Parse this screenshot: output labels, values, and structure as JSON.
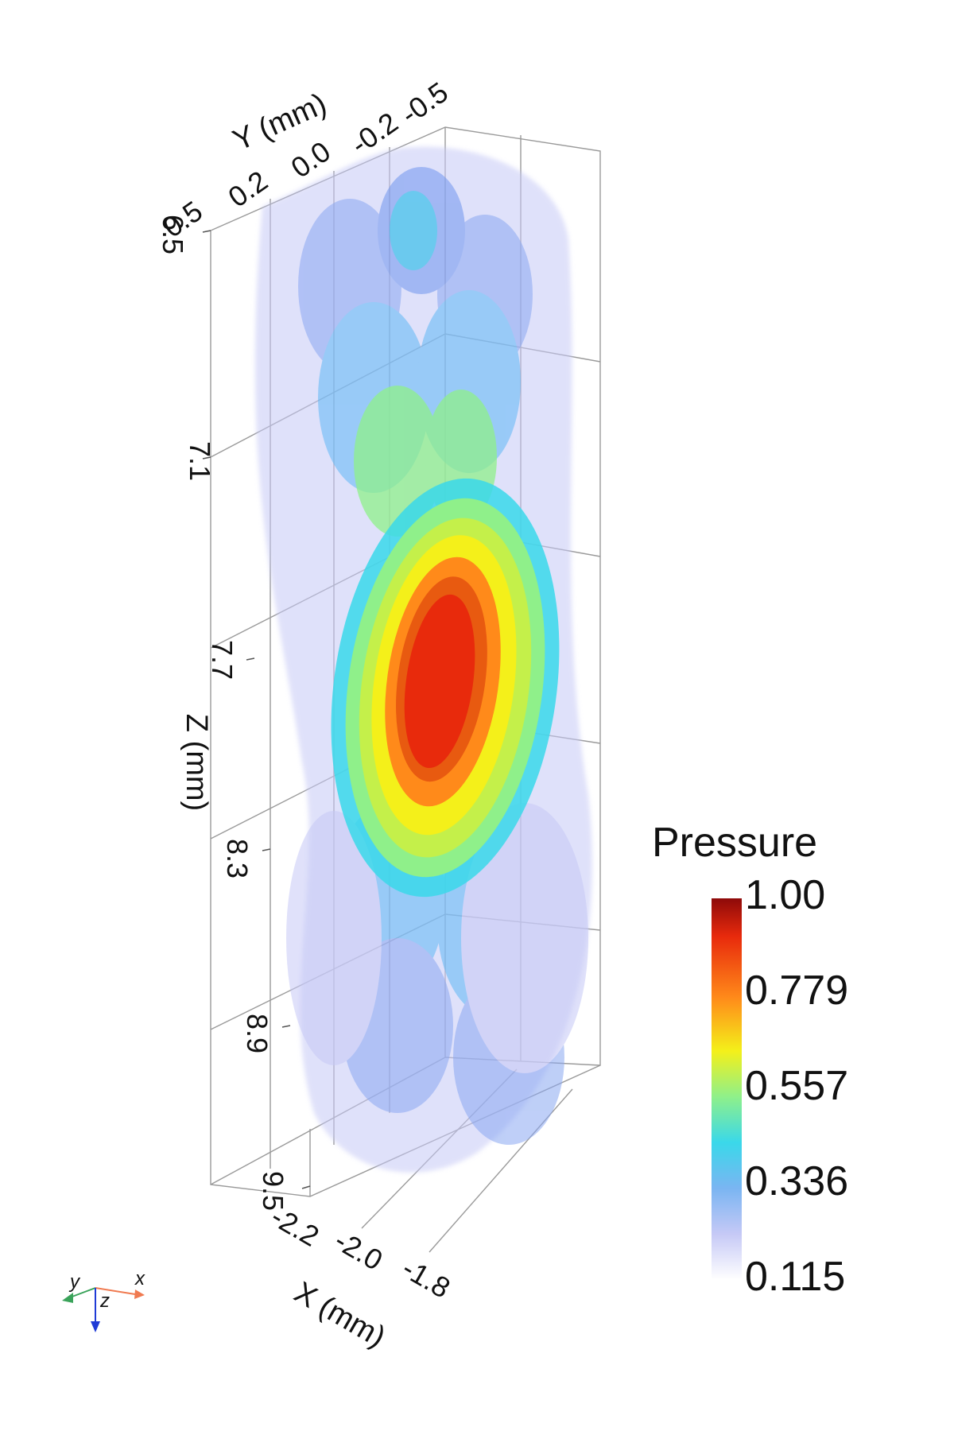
{
  "axes": {
    "y_title": "Y (mm)",
    "y_ticks": [
      "-0.5",
      "-0.2",
      "0.0",
      "0.2",
      "0.5"
    ],
    "z_title": "Z (mm)",
    "z_ticks": [
      "6.5",
      "7.1",
      "7.7",
      "8.3",
      "8.9",
      "9.5"
    ],
    "x_title": "X (mm)",
    "x_ticks": [
      "-2.2",
      "-2.0",
      "-1.8"
    ]
  },
  "legend": {
    "title": "Pressure",
    "ticks": [
      "1.00",
      "0.779",
      "0.557",
      "0.336",
      "0.115"
    ],
    "colors": [
      "#8e0a0a",
      "#e82a0c",
      "#ff8a1a",
      "#f4f01a",
      "#8ff08a",
      "#3ad8ea",
      "#7ab5f2",
      "#c6c9f6",
      "#ffffff"
    ]
  },
  "orientation": {
    "x": "x",
    "y": "y",
    "z": "z"
  },
  "isosurfaces": [
    {
      "level": 0.115,
      "color": "#c6c9f6"
    },
    {
      "level": 0.25,
      "color": "#8aa8f2"
    },
    {
      "level": 0.336,
      "color": "#5fb8f5"
    },
    {
      "level": 0.45,
      "color": "#3ad8ea"
    },
    {
      "level": 0.557,
      "color": "#8ff08a"
    },
    {
      "level": 0.67,
      "color": "#f4f01a"
    },
    {
      "level": 0.779,
      "color": "#ff8a1a"
    },
    {
      "level": 0.9,
      "color": "#e82a0c"
    }
  ]
}
